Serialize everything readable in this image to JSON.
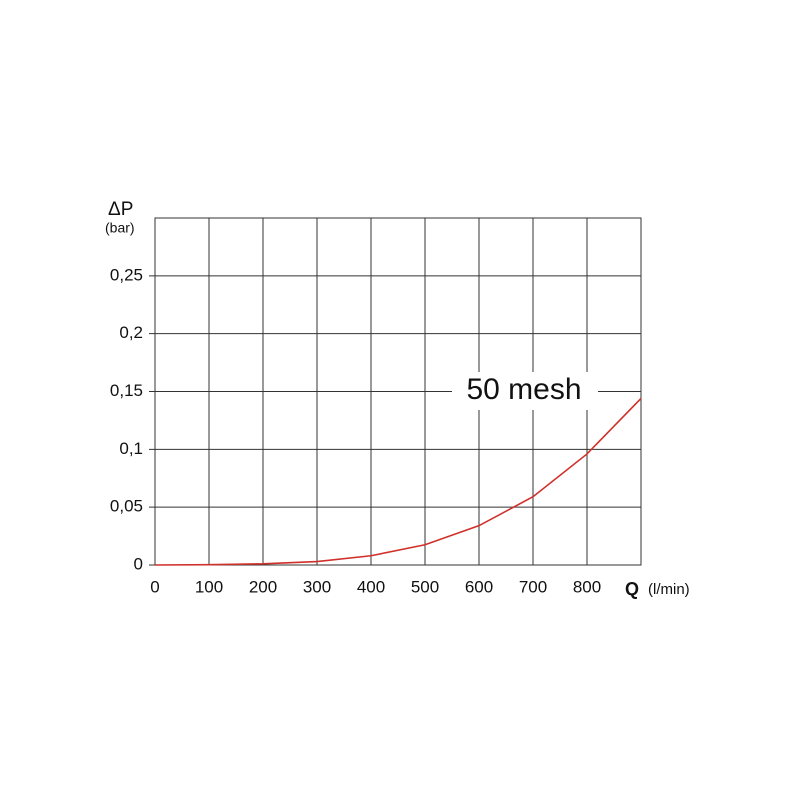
{
  "chart_data": {
    "type": "line",
    "y_label": "ΔP",
    "y_unit": "(bar)",
    "x_label": "Q",
    "x_unit": "(l/min)",
    "x": [
      0,
      100,
      200,
      300,
      400,
      500,
      600,
      700,
      800,
      900
    ],
    "series": [
      {
        "name": "50 mesh",
        "color": "#d0302a",
        "values": [
          0,
          0.0003,
          0.001,
          0.003,
          0.008,
          0.0175,
          0.034,
          0.059,
          0.096,
          0.144
        ]
      }
    ],
    "xlim": [
      0,
      900
    ],
    "xticks": [
      0,
      100,
      200,
      300,
      400,
      500,
      600,
      700,
      800
    ],
    "ylim": [
      0,
      0.3
    ],
    "yticks": [
      0,
      {
        "value": 0.05,
        "label": "0,05"
      },
      {
        "value": 0.1,
        "label": "0,1"
      },
      {
        "value": 0.15,
        "label": "0,15"
      },
      {
        "value": 0.2,
        "label": "0,2"
      },
      {
        "value": 0.25,
        "label": "0,25"
      }
    ],
    "grid": true
  }
}
